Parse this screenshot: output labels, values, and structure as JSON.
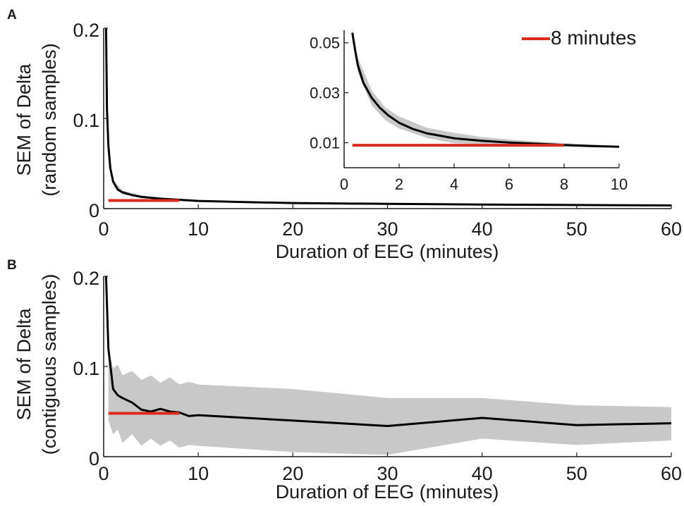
{
  "colors": {
    "mean_line": "#000000",
    "band": "#c8c8c8",
    "marker": "#d92b1e",
    "axis": "#1a1a1a"
  },
  "legend": {
    "label": "8 minutes",
    "placement": "top-right"
  },
  "chart_data": [
    {
      "panel": "A",
      "type": "line",
      "title": "",
      "xlabel": "Duration of EEG (minutes)",
      "ylabel": "SEM of Delta",
      "ylabel_sub": "(random samples)",
      "xlim": [
        0,
        60
      ],
      "ylim": [
        0,
        0.2
      ],
      "xticks": [
        0,
        10,
        20,
        30,
        40,
        50,
        60
      ],
      "yticks": [
        0,
        0.1,
        0.2
      ],
      "ytick_labels": [
        "0",
        "0.1",
        "0.2"
      ],
      "grid": false,
      "series": [
        {
          "x": [
            0.25,
            0.35,
            0.5,
            0.7,
            1,
            1.5,
            2,
            3,
            4,
            5,
            6,
            8,
            10,
            15,
            20,
            30,
            40,
            50,
            60
          ],
          "y": [
            0.2,
            0.11,
            0.07,
            0.045,
            0.03,
            0.021,
            0.018,
            0.015,
            0.013,
            0.012,
            0.011,
            0.0098,
            0.0085,
            0.0072,
            0.0062,
            0.0052,
            0.0045,
            0.004,
            0.0035
          ]
        }
      ],
      "band": {
        "x": [
          0.5,
          1,
          2,
          4,
          6,
          8,
          10,
          20,
          40,
          60
        ],
        "upper": [
          0.074,
          0.032,
          0.02,
          0.0145,
          0.012,
          0.0105,
          0.009,
          0.0066,
          0.0048,
          0.0038
        ],
        "lower": [
          0.066,
          0.028,
          0.016,
          0.0115,
          0.01,
          0.009,
          0.008,
          0.0058,
          0.0042,
          0.0032
        ]
      },
      "reference_line": {
        "y": 0.009,
        "x": [
          0.5,
          8
        ]
      },
      "inset": {
        "xlim": [
          0,
          10
        ],
        "ylim": [
          0,
          0.055
        ],
        "xticks": [
          0,
          2,
          4,
          6,
          8,
          10
        ],
        "yticks": [
          0.01,
          0.03,
          0.05
        ],
        "ytick_labels": [
          "0.01",
          "0.03",
          "0.05"
        ],
        "series": [
          {
            "x": [
              0.3,
              0.4,
              0.5,
              0.7,
              1,
              1.3,
              1.6,
              2,
              2.5,
              3,
              3.5,
              4,
              5,
              6,
              7,
              8,
              9,
              10
            ],
            "y": [
              0.054,
              0.047,
              0.041,
              0.034,
              0.028,
              0.024,
              0.021,
              0.018,
              0.0155,
              0.0138,
              0.0128,
              0.0118,
              0.0108,
              0.0101,
              0.0096,
              0.0091,
              0.0087,
              0.0084
            ]
          }
        ],
        "band": {
          "x": [
            0.3,
            0.5,
            1,
            1.5,
            2,
            3,
            4,
            5,
            6,
            8,
            10
          ],
          "upper": [
            0.056,
            0.044,
            0.031,
            0.024,
            0.0205,
            0.016,
            0.014,
            0.0123,
            0.0113,
            0.0098,
            0.0088
          ],
          "lower": [
            0.052,
            0.038,
            0.025,
            0.019,
            0.0157,
            0.012,
            0.0098,
            0.0095,
            0.0088,
            0.0084,
            0.008
          ]
        },
        "reference_line": {
          "y": 0.009,
          "x": [
            0.3,
            8
          ]
        }
      }
    },
    {
      "panel": "B",
      "type": "line",
      "title": "",
      "xlabel": "Duration of EEG (minutes)",
      "ylabel": "SEM of Delta",
      "ylabel_sub": "(contiguous samples)",
      "xlim": [
        0,
        60
      ],
      "ylim": [
        0,
        0.2
      ],
      "xticks": [
        0,
        10,
        20,
        30,
        40,
        50,
        60
      ],
      "yticks": [
        0,
        0.1,
        0.2
      ],
      "ytick_labels": [
        "0",
        "0.1",
        "0.2"
      ],
      "grid": false,
      "series": [
        {
          "x": [
            0.25,
            0.5,
            1,
            1.5,
            2,
            3,
            4,
            5,
            6,
            7,
            8,
            9,
            10,
            20,
            30,
            40,
            50,
            60
          ],
          "y": [
            0.2,
            0.12,
            0.075,
            0.068,
            0.065,
            0.06,
            0.052,
            0.05,
            0.053,
            0.05,
            0.049,
            0.045,
            0.046,
            0.04,
            0.034,
            0.043,
            0.035,
            0.037
          ]
        }
      ],
      "band": {
        "x": [
          0.5,
          1,
          1.5,
          2,
          3,
          4,
          5,
          6,
          7,
          8,
          9,
          10,
          20,
          30,
          40,
          50,
          60
        ],
        "upper": [
          0.12,
          0.098,
          0.102,
          0.09,
          0.095,
          0.085,
          0.09,
          0.082,
          0.088,
          0.08,
          0.083,
          0.08,
          0.075,
          0.065,
          0.065,
          0.057,
          0.055
        ],
        "lower": [
          0.04,
          0.025,
          0.03,
          0.015,
          0.025,
          0.012,
          0.02,
          0.012,
          0.018,
          0.01,
          0.013,
          0.012,
          0.005,
          0.002,
          0.02,
          0.013,
          0.018
        ]
      },
      "reference_line": {
        "y": 0.048,
        "x": [
          0.5,
          8
        ]
      }
    }
  ]
}
